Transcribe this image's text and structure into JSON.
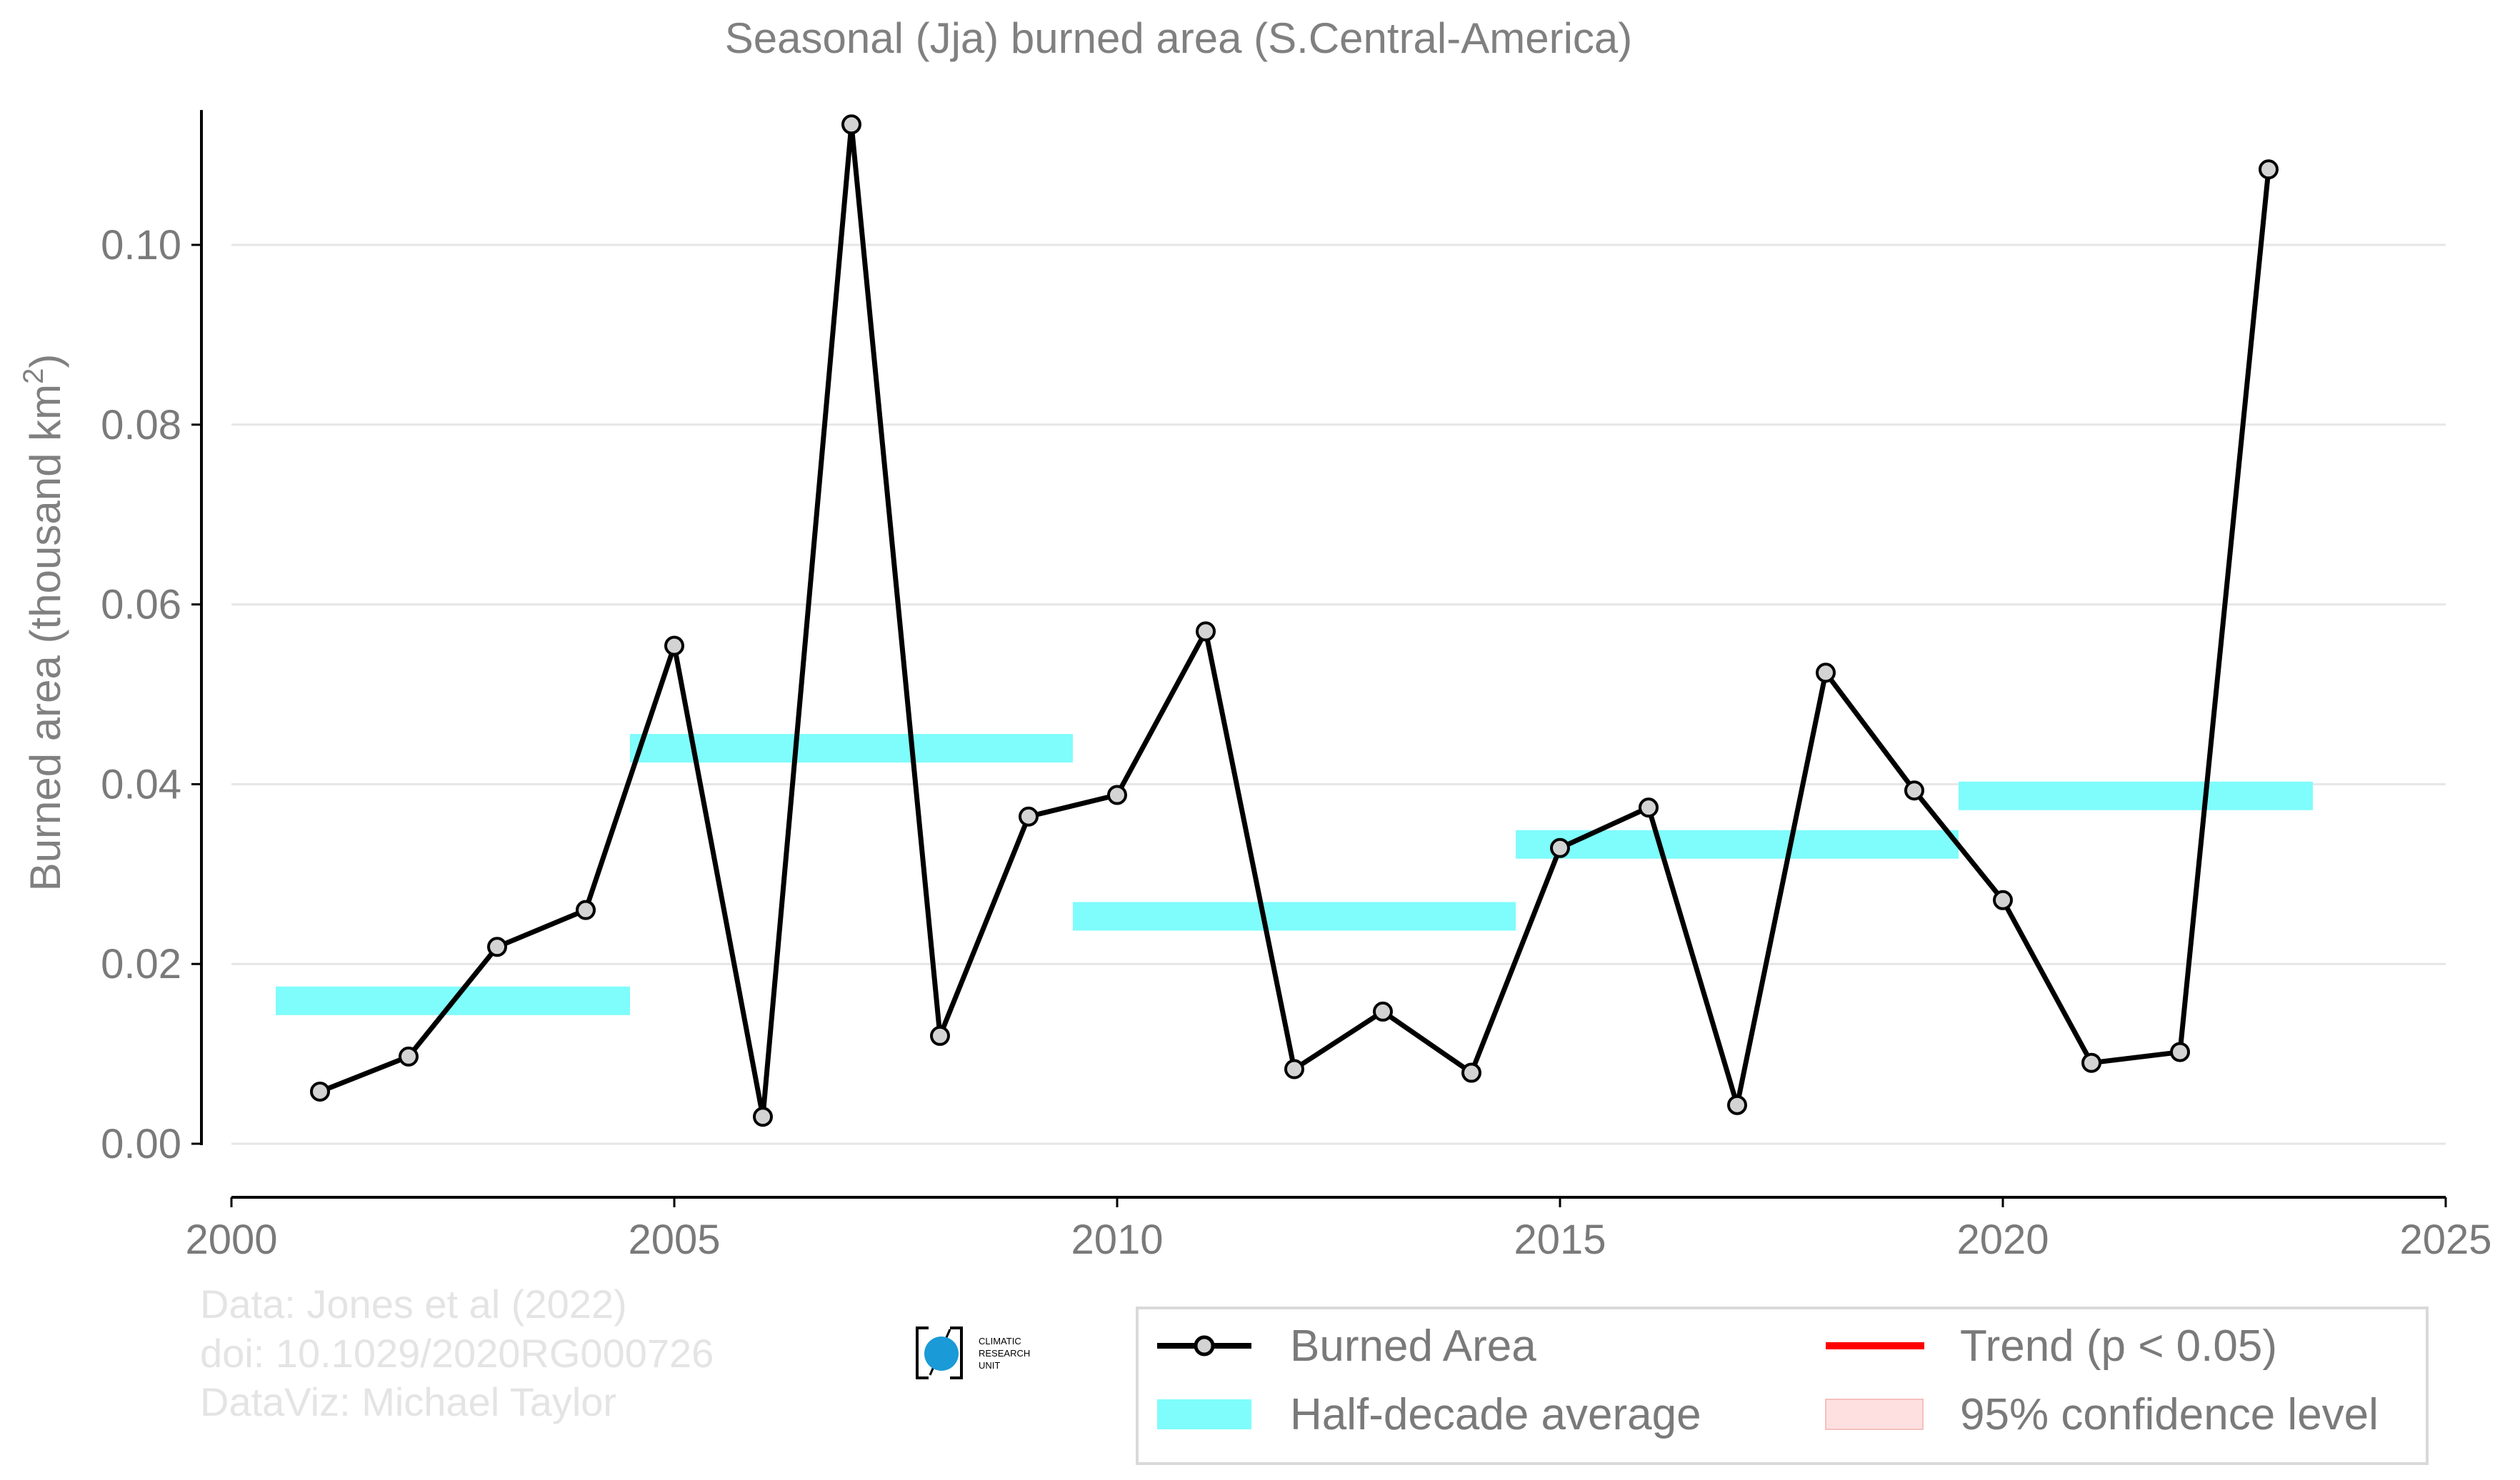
{
  "chart_data": {
    "type": "line",
    "title": "Seasonal (Jja) burned area (S.Central-America)",
    "xlabel": "",
    "ylabel": "Burned area (thousand km",
    "ylabel_sup": "2",
    "ylabel_close": ")",
    "xlim": [
      2000,
      2025
    ],
    "ylim": [
      -0.005,
      0.115
    ],
    "x_ticks": [
      2000,
      2005,
      2010,
      2015,
      2020,
      2025
    ],
    "x_tick_labels": [
      "2000",
      "2005",
      "2010",
      "2015",
      "2020",
      "2025"
    ],
    "y_ticks": [
      0.0,
      0.02,
      0.04,
      0.06,
      0.08,
      0.1
    ],
    "y_tick_labels": [
      "0.00",
      "0.02",
      "0.04",
      "0.06",
      "0.08",
      "0.10"
    ],
    "grid": "horizontal",
    "series": [
      {
        "name": "Burned Area",
        "color": "#000000",
        "marker_fill": "#d3d3d3",
        "x": [
          2001,
          2002,
          2003,
          2004,
          2005,
          2006,
          2007,
          2008,
          2009,
          2010,
          2011,
          2012,
          2013,
          2014,
          2015,
          2016,
          2017,
          2018,
          2019,
          2020,
          2021,
          2022,
          2023
        ],
        "y": [
          0.0058,
          0.0097,
          0.0219,
          0.026,
          0.0554,
          0.003,
          0.1134,
          0.012,
          0.0364,
          0.0388,
          0.057,
          0.0083,
          0.0147,
          0.0079,
          0.0329,
          0.0374,
          0.0043,
          0.0524,
          0.0393,
          0.0271,
          0.009,
          0.0102,
          0.1084
        ]
      },
      {
        "name": "Half-decade average",
        "color": "#7ffcfc",
        "segments": [
          {
            "x": [
              2000.5,
              2004.5
            ],
            "y": 0.0159
          },
          {
            "x": [
              2004.5,
              2009.5
            ],
            "y": 0.044
          },
          {
            "x": [
              2009.5,
              2014.5
            ],
            "y": 0.0253
          },
          {
            "x": [
              2014.5,
              2019.5
            ],
            "y": 0.0333
          },
          {
            "x": [
              2019.5,
              2023.5
            ],
            "y": 0.0387
          }
        ]
      },
      {
        "name": "Trend (p < 0.05)",
        "color": "#ff0000",
        "values": []
      },
      {
        "name": "95% confidence level",
        "color": "#ffe0e0",
        "values": []
      }
    ],
    "legend": {
      "placement": "bottom-right",
      "entries": [
        "Burned Area",
        "Trend (p < 0.05)",
        "Half-decade average",
        "95% confidence level"
      ]
    }
  },
  "credits": {
    "line1": "Data: Jones et al (2022)",
    "line2": "doi: 10.1029/2020RG000726",
    "line3": "DataViz: Michael Taylor"
  },
  "logo": {
    "line1": "CLIMATIC",
    "line2": "RESEARCH",
    "line3": "UNIT"
  },
  "colors": {
    "grid": "#e6e6e6",
    "axis": "#000000",
    "text": "#808080",
    "credit": "#e4e4e4"
  }
}
